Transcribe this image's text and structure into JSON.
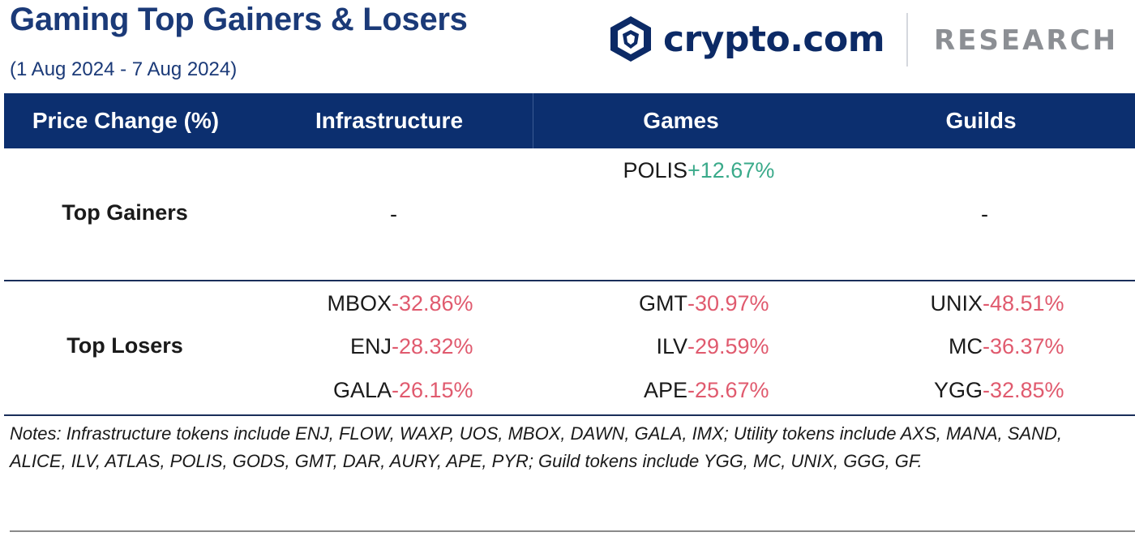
{
  "header": {
    "title": "Gaming Top Gainers & Losers",
    "subtitle": "(1 Aug 2024 - 7 Aug 2024)",
    "brand": "crypto.com",
    "section": "RESEARCH"
  },
  "table": {
    "columns": [
      "Price Change (%)",
      "Infrastructure",
      "Games",
      "Guilds"
    ],
    "rows": {
      "gainers": {
        "label": "Top Gainers",
        "infrastructure": "-",
        "games": [
          {
            "ticker": "POLIS",
            "change": "+12.67%"
          }
        ],
        "guilds": "-"
      },
      "losers": {
        "label": "Top Losers",
        "infrastructure": [
          {
            "ticker": "MBOX",
            "change": "-32.86%"
          },
          {
            "ticker": "ENJ",
            "change": "-28.32%"
          },
          {
            "ticker": "GALA",
            "change": "-26.15%"
          }
        ],
        "games": [
          {
            "ticker": "GMT",
            "change": "-30.97%"
          },
          {
            "ticker": "ILV",
            "change": "-29.59%"
          },
          {
            "ticker": "APE",
            "change": "-25.67%"
          }
        ],
        "guilds": [
          {
            "ticker": "UNIX",
            "change": "-48.51%"
          },
          {
            "ticker": "MC",
            "change": "-36.37%"
          },
          {
            "ticker": "YGG",
            "change": "-32.85%"
          }
        ]
      }
    }
  },
  "notes": "Notes: Infrastructure tokens include ENJ, FLOW, WAXP, UOS, MBOX, DAWN, GALA, IMX; Utility tokens include AXS, MANA, SAND, ALICE, ILV, ATLAS, POLIS, GODS, GMT, DAR, AURY, APE, PYR; Guild tokens include YGG, MC, UNIX, GGG, GF.",
  "colors": {
    "header_bg": "#0c2f6f",
    "title": "#1b3a78",
    "gain": "#3aaa8a",
    "loss": "#e05a6e"
  }
}
